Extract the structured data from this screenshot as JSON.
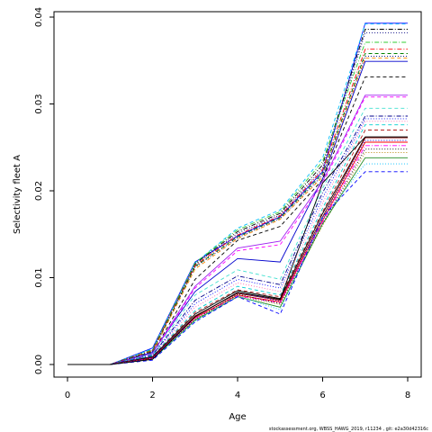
{
  "chart_data": {
    "type": "line",
    "title": "",
    "xlabel": "Age",
    "ylabel": "Selectivity fleet A",
    "x": [
      0,
      1,
      2,
      3,
      4,
      5,
      6,
      7,
      8
    ],
    "xlim": [
      0,
      8
    ],
    "ylim": [
      0,
      0.04
    ],
    "x_ticks": [
      0,
      2,
      4,
      6,
      8
    ],
    "y_ticks": [
      0.0,
      0.01,
      0.02,
      0.03,
      0.04
    ],
    "y_tick_labels": [
      "0.00",
      "0.01",
      "0.02",
      "0.03",
      "0.04"
    ],
    "grid": false,
    "legend": "none",
    "series": [
      {
        "color": "#0000ff",
        "dash": "solid",
        "values": [
          0,
          0,
          0.0019,
          0.0118,
          0.0148,
          0.017,
          0.0222,
          0.0393,
          0.0393
        ]
      },
      {
        "color": "#00bfff",
        "dash": "dashed",
        "values": [
          0,
          0,
          0.0018,
          0.0117,
          0.0157,
          0.0178,
          0.0238,
          0.0392,
          0.0392
        ]
      },
      {
        "color": "#000000",
        "dash": "dashdot",
        "values": [
          0,
          0,
          0.0017,
          0.0116,
          0.0153,
          0.0174,
          0.023,
          0.0386,
          0.0386
        ]
      },
      {
        "color": "#000080",
        "dash": "dotted",
        "values": [
          0,
          0,
          0.0016,
          0.0115,
          0.0151,
          0.0172,
          0.0226,
          0.0382,
          0.0382
        ]
      },
      {
        "color": "#32cd32",
        "dash": "dashdot",
        "values": [
          0,
          0,
          0.0017,
          0.0117,
          0.0155,
          0.0176,
          0.0234,
          0.0371,
          0.0371
        ]
      },
      {
        "color": "#ff0000",
        "dash": "dashdot",
        "values": [
          0,
          0,
          0.0016,
          0.0114,
          0.0149,
          0.0171,
          0.0224,
          0.0363,
          0.0363
        ]
      },
      {
        "color": "#008000",
        "dash": "dashed",
        "values": [
          0,
          0,
          0.0015,
          0.0113,
          0.0147,
          0.0169,
          0.022,
          0.0358,
          0.0358
        ]
      },
      {
        "color": "#000080",
        "dash": "dotted",
        "values": [
          0,
          0,
          0.0015,
          0.0112,
          0.0146,
          0.0168,
          0.0218,
          0.0355,
          0.0355
        ]
      },
      {
        "color": "#ff8c00",
        "dash": "dashed",
        "values": [
          0,
          0,
          0.0014,
          0.011,
          0.0145,
          0.0167,
          0.0216,
          0.0353,
          0.0353
        ]
      },
      {
        "color": "#0000cd",
        "dash": "solid",
        "values": [
          0,
          0,
          0.0014,
          0.0084,
          0.0122,
          0.0118,
          0.0214,
          0.0349,
          0.0349
        ]
      },
      {
        "color": "#000000",
        "dash": "dashed",
        "values": [
          0,
          0,
          0.0013,
          0.0098,
          0.0143,
          0.0159,
          0.0213,
          0.0331,
          0.0331
        ]
      },
      {
        "color": "#a020f0",
        "dash": "solid",
        "values": [
          0,
          0,
          0.0013,
          0.009,
          0.0134,
          0.0142,
          0.0211,
          0.031,
          0.031
        ]
      },
      {
        "color": "#ff00ff",
        "dash": "dashed",
        "values": [
          0,
          0,
          0.0012,
          0.0088,
          0.0131,
          0.0138,
          0.0208,
          0.0308,
          0.0308
        ]
      },
      {
        "color": "#40e0d0",
        "dash": "dashed",
        "values": [
          0,
          0,
          0.0012,
          0.008,
          0.0109,
          0.0098,
          0.0203,
          0.0295,
          0.0295
        ]
      },
      {
        "color": "#00008b",
        "dash": "dashdot",
        "values": [
          0,
          0,
          0.0011,
          0.0074,
          0.0102,
          0.0092,
          0.0198,
          0.0286,
          0.0286
        ]
      },
      {
        "color": "#0000ff",
        "dash": "dotted",
        "values": [
          0,
          0,
          0.0011,
          0.007,
          0.0098,
          0.0088,
          0.0192,
          0.0283,
          0.0283
        ]
      },
      {
        "color": "#ff69b4",
        "dash": "dotted",
        "values": [
          0,
          0,
          0.001,
          0.0066,
          0.0094,
          0.0084,
          0.0186,
          0.028,
          0.028
        ]
      },
      {
        "color": "#00ced1",
        "dash": "dashed",
        "values": [
          0,
          0,
          0.001,
          0.0062,
          0.009,
          0.008,
          0.018,
          0.0276,
          0.0276
        ]
      },
      {
        "color": "#b22222",
        "dash": "dashed",
        "values": [
          0,
          0,
          0.0009,
          0.006,
          0.0086,
          0.0078,
          0.0176,
          0.027,
          0.027
        ]
      },
      {
        "color": "#000000",
        "dash": "solid",
        "values": [
          0,
          0,
          0.0009,
          0.0058,
          0.0085,
          0.0076,
          0.0174,
          0.0262,
          0.0262
        ]
      },
      {
        "color": "#8b0000",
        "dash": "solid",
        "values": [
          0,
          0,
          0.0008,
          0.0056,
          0.0082,
          0.0074,
          0.017,
          0.0261,
          0.0261
        ]
      },
      {
        "color": "#0000ff",
        "dash": "dotted",
        "values": [
          0,
          0,
          0.0008,
          0.0055,
          0.0083,
          0.0073,
          0.0168,
          0.0258,
          0.0258
        ]
      },
      {
        "color": "#ff0000",
        "dash": "solid",
        "values": [
          0,
          0,
          0.0007,
          0.0054,
          0.008,
          0.0072,
          0.0166,
          0.0256,
          0.0256
        ]
      },
      {
        "color": "#ff00ff",
        "dash": "dashdot",
        "values": [
          0,
          0,
          0.0007,
          0.0053,
          0.0079,
          0.0071,
          0.0164,
          0.0252,
          0.0252
        ]
      },
      {
        "color": "#000000",
        "dash": "dotted",
        "values": [
          0,
          0,
          0.0007,
          0.0052,
          0.0081,
          0.007,
          0.0162,
          0.0248,
          0.0248
        ]
      },
      {
        "color": "#b8860b",
        "dash": "dotted",
        "values": [
          0,
          0,
          0.0006,
          0.0052,
          0.0079,
          0.0069,
          0.016,
          0.0244,
          0.0244
        ]
      },
      {
        "color": "#228b22",
        "dash": "solid",
        "values": [
          0,
          0,
          0.0006,
          0.0051,
          0.0078,
          0.0066,
          0.0162,
          0.0238,
          0.0238
        ]
      },
      {
        "color": "#00bfff",
        "dash": "dotted",
        "values": [
          0,
          0,
          0.0006,
          0.005,
          0.0079,
          0.0063,
          0.0168,
          0.0231,
          0.0231
        ]
      },
      {
        "color": "#0000ff",
        "dash": "dashed",
        "values": [
          0,
          0,
          0.0005,
          0.0049,
          0.0078,
          0.0058,
          0.017,
          0.0222,
          0.0222
        ]
      },
      {
        "color": "#000000",
        "dash": "solid",
        "values": [
          0,
          0,
          0.0006,
          0.0055,
          0.0083,
          0.0075,
          0.0209,
          0.0262,
          0.0262
        ]
      }
    ]
  },
  "footer_text": "stockassessment.org,  WBSS_HAWG_2019,  r11234 ,  git:  e2a30d42316c"
}
